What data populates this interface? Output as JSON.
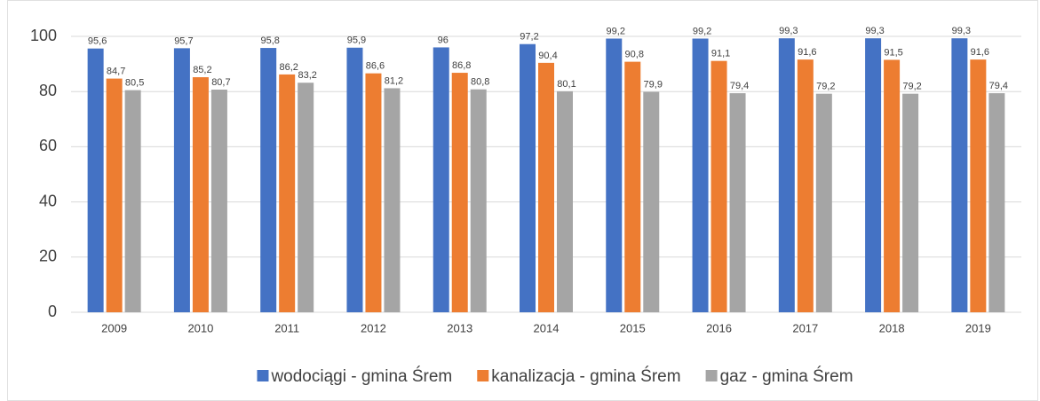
{
  "chart_data": {
    "type": "bar",
    "categories": [
      "2009",
      "2010",
      "2011",
      "2012",
      "2013",
      "2014",
      "2015",
      "2016",
      "2017",
      "2018",
      "2019"
    ],
    "series": [
      {
        "name": "wodociągi - gmina Śrem",
        "color": "#4472c4",
        "values": [
          95.6,
          95.7,
          95.8,
          95.9,
          96,
          97.2,
          99.2,
          99.2,
          99.3,
          99.3,
          99.3
        ],
        "value_labels": [
          "95,6",
          "95,7",
          "95,8",
          "95,9",
          "96",
          "97,2",
          "99,2",
          "99,2",
          "99,3",
          "99,3",
          "99,3"
        ]
      },
      {
        "name": "kanalizacja - gmina Śrem",
        "color": "#ed7d31",
        "values": [
          84.7,
          85.2,
          86.2,
          86.6,
          86.8,
          90.4,
          90.8,
          91.1,
          91.6,
          91.5,
          91.6
        ],
        "value_labels": [
          "84,7",
          "85,2",
          "86,2",
          "86,6",
          "86,8",
          "90,4",
          "90,8",
          "91,1",
          "91,6",
          "91,5",
          "91,6"
        ]
      },
      {
        "name": "gaz - gmina Śrem",
        "color": "#a5a5a5",
        "values": [
          80.5,
          80.7,
          83.2,
          81.2,
          80.8,
          80.1,
          79.9,
          79.4,
          79.2,
          79.2,
          79.4
        ],
        "value_labels": [
          "80,5",
          "80,7",
          "83,2",
          "81,2",
          "80,8",
          "80,1",
          "79,9",
          "79,4",
          "79,2",
          "79,2",
          "79,4"
        ]
      }
    ],
    "ylim": [
      0,
      100
    ],
    "yticks": [
      0,
      20,
      40,
      60,
      80,
      100
    ],
    "grid": true,
    "legend": "bottom"
  }
}
